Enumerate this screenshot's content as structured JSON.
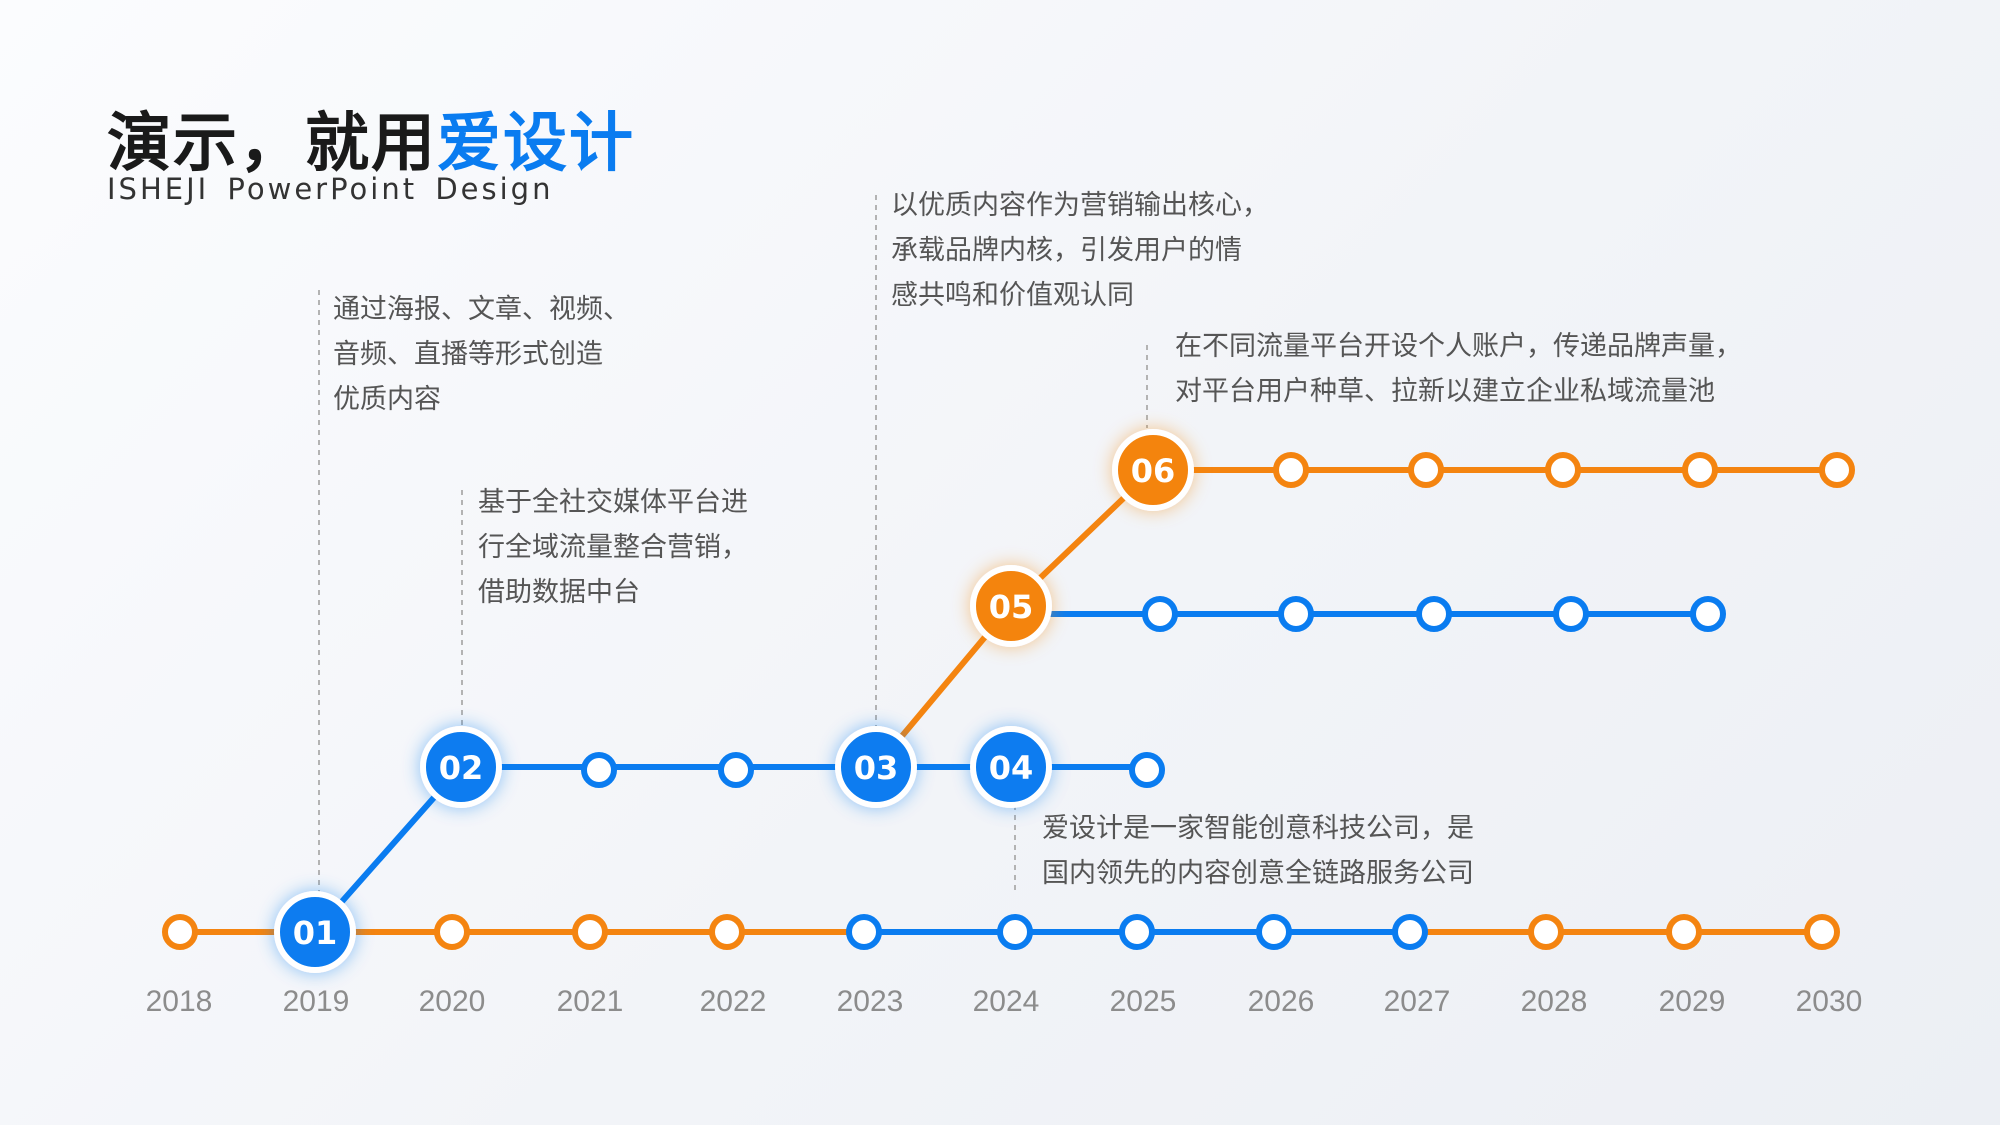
{
  "header": {
    "title_main": "演示，就用",
    "title_accent": "爱设计",
    "subtitle": "ISHEJI PowerPoint Design"
  },
  "colors": {
    "blue": "#0a7cf0",
    "orange": "#f48410",
    "text": "#555555",
    "year": "#8c8c8c"
  },
  "years": [
    "2018",
    "2019",
    "2020",
    "2021",
    "2022",
    "2023",
    "2024",
    "2025",
    "2026",
    "2027",
    "2028",
    "2029",
    "2030"
  ],
  "milestones": [
    {
      "num": "01",
      "color": "blue"
    },
    {
      "num": "02",
      "color": "blue"
    },
    {
      "num": "03",
      "color": "blue"
    },
    {
      "num": "04",
      "color": "blue"
    },
    {
      "num": "05",
      "color": "orange"
    },
    {
      "num": "06",
      "color": "orange"
    }
  ],
  "notes": {
    "n01": [
      "通过海报、文章、视频、",
      "音频、直播等形式创造",
      "优质内容"
    ],
    "n02": [
      "基于全社交媒体平台进",
      "行全域流量整合营销，",
      "借助数据中台"
    ],
    "n03": [
      "以优质内容作为营销输出核心，",
      "承载品牌内核，引发用户的情",
      "感共鸣和价值观认同"
    ],
    "n04": [
      "爱设计是一家智能创意科技公司，是",
      "国内领先的内容创意全链路服务公司"
    ],
    "n06": [
      "在不同流量平台开设个人账户，传递品牌声量，",
      "对平台用户种草、拉新以建立企业私域流量池"
    ]
  }
}
